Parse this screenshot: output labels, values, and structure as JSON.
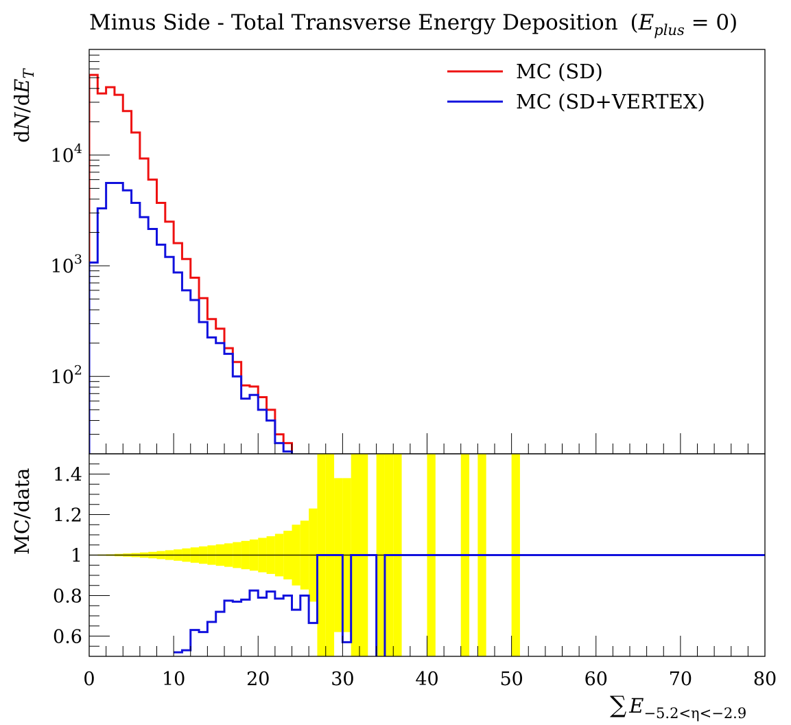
{
  "chart_data": [
    {
      "panel": "main",
      "type": "line",
      "title": "Minus Side - Total Transverse Energy Deposition",
      "title_math_E": "E",
      "title_math_sub": "plus",
      "title_math_tail": " = 0)",
      "title_paren_open": "(",
      "ylabel_d1": "d",
      "ylabel_N": "N",
      "ylabel_slash": "/d",
      "ylabel_E": "E",
      "ylabel_T": "T",
      "yscale": "log",
      "xlim": [
        0,
        80
      ],
      "ylim": [
        20,
        90000
      ],
      "grid": false,
      "legend_position": "top-right",
      "y_ticks": [
        {
          "base": "10",
          "exp": "2",
          "value": 100
        },
        {
          "base": "10",
          "exp": "3",
          "value": 1000
        },
        {
          "base": "10",
          "exp": "4",
          "value": 10000
        }
      ],
      "bin_edges": [
        0,
        1,
        2,
        3,
        4,
        5,
        6,
        7,
        8,
        9,
        10,
        11,
        12,
        13,
        14,
        15,
        16,
        17,
        18,
        19,
        20,
        21,
        22,
        23,
        24
      ],
      "series": [
        {
          "name": "MC (SD)",
          "color": "#ee1111",
          "values": [
            53000,
            36000,
            41000,
            35000,
            25000,
            16000,
            9300,
            6000,
            3700,
            2500,
            1600,
            1150,
            780,
            510,
            330,
            270,
            180,
            135,
            83,
            81,
            65,
            50,
            30,
            25
          ]
        },
        {
          "name": "MC (SD+VERTEX)",
          "color": "#1111dd",
          "values": [
            1070,
            3300,
            5600,
            5600,
            4800,
            3700,
            2750,
            2150,
            1550,
            1200,
            870,
            600,
            490,
            310,
            225,
            200,
            160,
            100,
            63,
            68,
            50,
            40,
            25,
            21
          ]
        }
      ]
    },
    {
      "panel": "ratio",
      "type": "line",
      "ylabel": "MC/data",
      "xlabel_sum": "∑",
      "xlabel_E": "E",
      "xlabel_sub": "−5.2<η<−2.9",
      "xlim": [
        0,
        80
      ],
      "ylim": [
        0.5,
        1.5
      ],
      "x_ticks": [
        "0",
        "10",
        "20",
        "30",
        "40",
        "50",
        "60",
        "70",
        "80"
      ],
      "y_ticks": [
        "0.6",
        "0.8",
        "1",
        "1.2",
        "1.4"
      ],
      "reference_line": 1,
      "band_color": "#ffff00",
      "uncertainty_band": {
        "bin_edges": [
          0,
          1,
          2,
          3,
          4,
          5,
          6,
          7,
          8,
          9,
          10,
          11,
          12,
          13,
          14,
          15,
          16,
          17,
          18,
          19,
          20,
          21,
          22,
          23,
          24,
          25,
          26,
          27,
          28,
          29,
          30,
          31,
          32,
          33,
          34,
          35,
          36,
          37
        ],
        "half_width": [
          0.002,
          0.003,
          0.004,
          0.006,
          0.008,
          0.01,
          0.013,
          0.016,
          0.02,
          0.024,
          0.028,
          0.033,
          0.038,
          0.043,
          0.048,
          0.053,
          0.058,
          0.064,
          0.07,
          0.077,
          0.085,
          0.093,
          0.105,
          0.12,
          0.15,
          0.17,
          0.23,
          0.6,
          0.6,
          0.38,
          0.38,
          0.6,
          0.6,
          0,
          0.6,
          0.6,
          0.6
        ]
      },
      "full_bands": [
        [
          40,
          41
        ],
        [
          44,
          45
        ],
        [
          46,
          47
        ],
        [
          50,
          51
        ]
      ],
      "series": [
        {
          "name": "MC (SD+VERTEX)",
          "color": "#1111dd",
          "segments": [
            {
              "x": [
                10,
                11,
                12,
                13,
                14,
                15,
                16,
                17,
                18,
                19,
                20,
                21,
                22,
                23,
                24,
                25,
                26,
                27,
                30,
                31,
                34,
                35,
                80
              ],
              "y": [
                0.52,
                0.53,
                0.63,
                0.62,
                0.67,
                0.72,
                0.775,
                0.77,
                0.78,
                0.825,
                0.79,
                0.82,
                0.785,
                0.8,
                0.73,
                0.8,
                0.665,
                1.0,
                0.57,
                1.0,
                0.0,
                1.0,
                1.0
              ]
            }
          ]
        }
      ]
    }
  ]
}
